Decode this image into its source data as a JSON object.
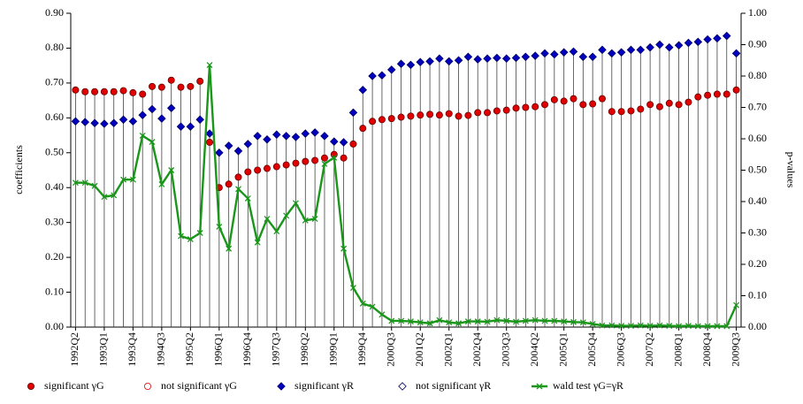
{
  "chart_data": {
    "type": "line",
    "y_label": "coefficients",
    "y2_label": "p-values",
    "categories": [
      "1992Q2",
      null,
      null,
      "1993Q1",
      null,
      null,
      "1993Q4",
      null,
      null,
      "1994Q3",
      null,
      null,
      "1995Q2",
      null,
      null,
      "1996Q1",
      null,
      null,
      "1996Q4",
      null,
      null,
      "1997Q3",
      null,
      null,
      "1998Q2",
      null,
      null,
      "1999Q1",
      null,
      null,
      "1999Q4",
      null,
      null,
      "2000Q3",
      null,
      null,
      "2001Q2",
      null,
      null,
      "2002Q1",
      null,
      null,
      "2002Q4",
      null,
      null,
      "2003Q3",
      null,
      null,
      "2004Q2",
      null,
      null,
      "2005Q1",
      null,
      null,
      "2005Q4",
      null,
      null,
      "2006Q3",
      null,
      null,
      "2007Q2",
      null,
      null,
      "2008Q1",
      null,
      null,
      "2008Q4",
      null,
      null,
      "2009Q3"
    ],
    "ylim": [
      0,
      0.9
    ],
    "yticks": [
      {
        "value": 0,
        "label": "0.00"
      },
      {
        "value": 0.1,
        "label": "0.10"
      },
      {
        "value": 0.2,
        "label": "0.20"
      },
      {
        "value": 0.3,
        "label": "0.30"
      },
      {
        "value": 0.4,
        "label": "0.40"
      },
      {
        "value": 0.5,
        "label": "0.50"
      },
      {
        "value": 0.6,
        "label": "0.60"
      },
      {
        "value": 0.7,
        "label": "0.70"
      },
      {
        "value": 0.8,
        "label": "0.80"
      },
      {
        "value": 0.9,
        "label": "0.90"
      }
    ],
    "y2lim": [
      0,
      1
    ],
    "y2ticks": [
      {
        "value": 0,
        "label": "0.00"
      },
      {
        "value": 0.1,
        "label": "0.10"
      },
      {
        "value": 0.2,
        "label": "0.20"
      },
      {
        "value": 0.3,
        "label": "0.30"
      },
      {
        "value": 0.4,
        "label": "0.40"
      },
      {
        "value": 0.5,
        "label": "0.50"
      },
      {
        "value": 0.6,
        "label": "0.60"
      },
      {
        "value": 0.7,
        "label": "0.70"
      },
      {
        "value": 0.8,
        "label": "0.80"
      },
      {
        "value": 0.9,
        "label": "0.90"
      },
      {
        "value": 1,
        "label": "1.00"
      }
    ],
    "drop_lines": true,
    "series": [
      {
        "name": "significant γG",
        "color": "#e00000",
        "marker": "circle",
        "filled": true,
        "values": [
          0.68,
          0.675,
          0.675,
          0.675,
          0.675,
          0.678,
          0.672,
          0.668,
          0.69,
          0.688,
          0.708,
          0.688,
          0.69,
          0.705,
          0.53,
          0.4,
          0.41,
          0.43,
          0.445,
          0.45,
          0.455,
          0.46,
          0.465,
          0.47,
          0.475,
          0.478,
          0.485,
          0.495,
          0.485,
          0.525,
          0.57,
          0.59,
          0.595,
          0.598,
          0.602,
          0.605,
          0.608,
          0.61,
          0.608,
          0.612,
          0.605,
          0.607,
          0.615,
          0.615,
          0.62,
          0.622,
          0.628,
          0.63,
          0.632,
          0.638,
          0.652,
          0.648,
          0.655,
          0.638,
          0.64,
          0.655,
          0.618,
          0.618,
          0.62,
          0.625,
          0.638,
          0.632,
          0.642,
          0.638,
          0.645,
          0.66,
          0.665,
          0.668,
          0.668,
          0.68
        ]
      },
      {
        "name": "not significant γG",
        "color": "#e00000",
        "marker": "circle",
        "filled": false,
        "values": [
          null,
          null,
          null,
          null,
          null,
          null,
          null,
          null,
          null,
          null,
          null,
          null,
          null,
          null,
          null,
          null,
          null,
          null,
          null,
          null,
          null,
          null,
          null,
          null,
          null,
          null,
          null,
          null,
          null,
          null,
          null,
          null,
          null,
          null,
          null,
          null,
          null,
          null,
          null,
          null,
          null,
          null,
          null,
          null,
          null,
          null,
          null,
          null,
          null,
          null,
          null,
          null,
          null,
          null,
          null,
          null,
          null,
          null,
          null,
          null,
          null,
          null,
          null,
          null,
          null,
          null,
          null,
          null,
          null,
          null
        ]
      },
      {
        "name": "significant γR",
        "color": "#0000c0",
        "marker": "diamond",
        "filled": true,
        "values": [
          0.59,
          0.588,
          0.585,
          0.583,
          0.585,
          0.595,
          0.59,
          0.608,
          0.625,
          0.598,
          0.628,
          0.575,
          0.575,
          0.595,
          0.555,
          0.5,
          0.52,
          0.505,
          0.525,
          0.548,
          0.538,
          0.552,
          0.548,
          0.545,
          0.555,
          0.558,
          0.548,
          0.532,
          0.53,
          0.615,
          0.68,
          0.72,
          0.722,
          0.738,
          0.755,
          0.752,
          0.76,
          0.762,
          0.77,
          0.762,
          0.765,
          0.775,
          0.768,
          0.77,
          0.772,
          0.77,
          0.772,
          0.775,
          0.778,
          0.785,
          0.782,
          0.788,
          0.79,
          0.775,
          0.775,
          0.795,
          0.785,
          0.788,
          0.795,
          0.795,
          0.802,
          0.81,
          0.802,
          0.808,
          0.815,
          0.818,
          0.825,
          0.828,
          0.835,
          0.785
        ]
      },
      {
        "name": "not significant γR",
        "color": "#0000c0",
        "marker": "diamond",
        "filled": false,
        "values": [
          null,
          null,
          null,
          null,
          null,
          null,
          null,
          null,
          null,
          null,
          null,
          null,
          null,
          null,
          null,
          null,
          null,
          null,
          null,
          null,
          null,
          null,
          null,
          null,
          null,
          null,
          null,
          null,
          null,
          null,
          null,
          null,
          null,
          null,
          null,
          null,
          null,
          null,
          null,
          null,
          null,
          null,
          null,
          null,
          null,
          null,
          null,
          null,
          null,
          null,
          null,
          null,
          null,
          null,
          null,
          null,
          null,
          null,
          null,
          null,
          null,
          null,
          null,
          null,
          null,
          null,
          null,
          null,
          null,
          null
        ]
      },
      {
        "name": "wald test γG=γR",
        "color": "#1a961a",
        "marker": "x",
        "line": true,
        "axis": "y2",
        "values": [
          0.46,
          0.46,
          0.45,
          0.415,
          0.42,
          0.47,
          0.47,
          0.61,
          0.59,
          0.455,
          0.5,
          0.29,
          0.28,
          0.3,
          0.835,
          0.32,
          0.25,
          0.44,
          0.41,
          0.27,
          0.345,
          0.305,
          0.355,
          0.395,
          0.34,
          0.345,
          0.52,
          0.54,
          0.25,
          0.125,
          0.075,
          0.065,
          0.04,
          0.02,
          0.02,
          0.018,
          0.015,
          0.012,
          0.022,
          0.015,
          0.012,
          0.018,
          0.018,
          0.017,
          0.022,
          0.02,
          0.017,
          0.02,
          0.022,
          0.02,
          0.02,
          0.018,
          0.016,
          0.015,
          0.01,
          0.005,
          0.005,
          0.004,
          0.004,
          0.005,
          0.004,
          0.005,
          0.004,
          0.003,
          0.004,
          0.003,
          0.003,
          0.003,
          0.003,
          0.07
        ]
      }
    ]
  }
}
